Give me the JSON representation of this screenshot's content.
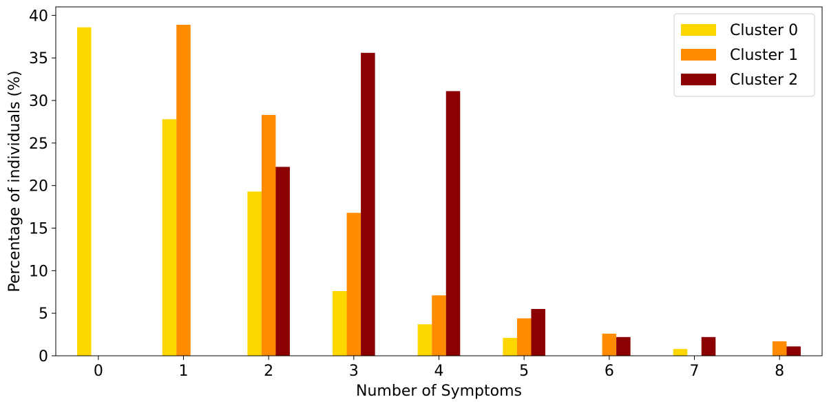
{
  "chart_data": {
    "type": "bar",
    "title": "",
    "xlabel": "Number of Symptoms",
    "ylabel": "Percentage of individuals (%)",
    "categories": [
      "0",
      "1",
      "2",
      "3",
      "4",
      "5",
      "6",
      "7",
      "8"
    ],
    "yticks": [
      "0",
      "5",
      "10",
      "15",
      "20",
      "25",
      "30",
      "35",
      "40"
    ],
    "ylim": [
      0,
      41
    ],
    "grid": false,
    "legend_position": "top-right",
    "series": [
      {
        "name": "Cluster 0",
        "color": "#FFD700",
        "values": [
          38.6,
          27.8,
          19.3,
          7.6,
          3.7,
          2.1,
          0,
          0.8,
          0
        ]
      },
      {
        "name": "Cluster 1",
        "color": "#FF8C00",
        "values": [
          0,
          38.9,
          28.3,
          16.8,
          7.1,
          4.4,
          2.6,
          0,
          1.7
        ]
      },
      {
        "name": "Cluster 2",
        "color": "#8B0000",
        "values": [
          0,
          0,
          22.2,
          35.6,
          31.1,
          5.5,
          2.2,
          2.2,
          1.1
        ]
      }
    ]
  }
}
